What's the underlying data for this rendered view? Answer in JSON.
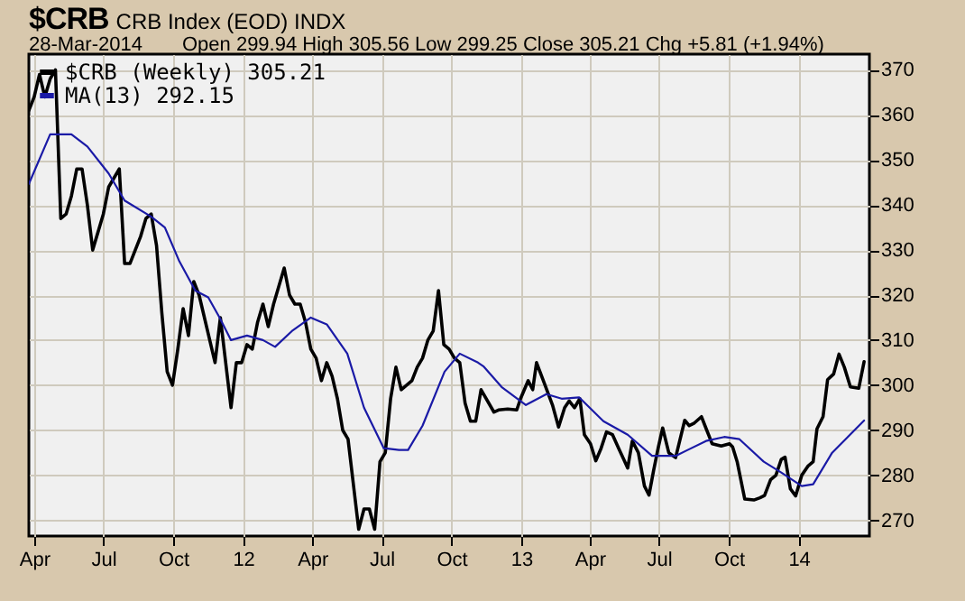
{
  "chart_data": {
    "type": "line",
    "title": "$CRB",
    "subtitle": "CRB Index (EOD)  INDX",
    "annotations": [
      "28-Mar-2014",
      "Open 299.94  High 305.56  Low 299.25  Close 305.21  Chg +5.81 (+1.94%)"
    ],
    "xlim": [
      "2011-03-25",
      "2014-04-04"
    ],
    "xticks": [
      {
        "value": "2011-04-01",
        "label": "Apr"
      },
      {
        "value": "2011-07-01",
        "label": "Jul"
      },
      {
        "value": "2011-10-01",
        "label": "Oct"
      },
      {
        "value": "2012-01-01",
        "label": "12"
      },
      {
        "value": "2012-04-01",
        "label": "Apr"
      },
      {
        "value": "2012-07-01",
        "label": "Jul"
      },
      {
        "value": "2012-10-01",
        "label": "Oct"
      },
      {
        "value": "2013-01-01",
        "label": "13"
      },
      {
        "value": "2013-04-01",
        "label": "Apr"
      },
      {
        "value": "2013-07-01",
        "label": "Jul"
      },
      {
        "value": "2013-10-01",
        "label": "Oct"
      },
      {
        "value": "2014-01-01",
        "label": "14"
      }
    ],
    "ylim": [
      266.5,
      373.5
    ],
    "yticks": [
      270,
      280,
      290,
      300,
      310,
      320,
      330,
      340,
      350,
      360,
      370
    ],
    "grid": true,
    "legend": "top left",
    "series": [
      {
        "name": "$CRB (Weekly) 305.21",
        "color": "#000000",
        "x": [
          "2011-03-25",
          "2011-04-01",
          "2011-04-08",
          "2011-04-15",
          "2011-04-22",
          "2011-04-29",
          "2011-05-06",
          "2011-05-13",
          "2011-05-20",
          "2011-05-27",
          "2011-06-03",
          "2011-06-10",
          "2011-06-17",
          "2011-06-24",
          "2011-07-01",
          "2011-07-08",
          "2011-07-15",
          "2011-07-22",
          "2011-07-29",
          "2011-08-05",
          "2011-08-12",
          "2011-08-19",
          "2011-08-26",
          "2011-09-02",
          "2011-09-09",
          "2011-09-16",
          "2011-09-23",
          "2011-09-30",
          "2011-10-07",
          "2011-10-14",
          "2011-10-21",
          "2011-10-28",
          "2011-11-04",
          "2011-11-25",
          "2011-12-02",
          "2011-12-16",
          "2011-12-23",
          "2011-12-30",
          "2012-01-06",
          "2012-01-13",
          "2012-01-20",
          "2012-01-27",
          "2012-02-03",
          "2012-02-10",
          "2012-02-17",
          "2012-02-24",
          "2012-03-02",
          "2012-03-09",
          "2012-03-16",
          "2012-03-23",
          "2012-03-30",
          "2012-04-06",
          "2012-04-13",
          "2012-04-20",
          "2012-04-27",
          "2012-05-04",
          "2012-05-11",
          "2012-05-18",
          "2012-05-25",
          "2012-06-01",
          "2012-06-08",
          "2012-06-15",
          "2012-06-22",
          "2012-06-29",
          "2012-07-06",
          "2012-07-13",
          "2012-07-20",
          "2012-07-27",
          "2012-08-03",
          "2012-08-10",
          "2012-08-17",
          "2012-08-24",
          "2012-08-31",
          "2012-09-07",
          "2012-09-14",
          "2012-09-21",
          "2012-09-28",
          "2012-10-05",
          "2012-10-12",
          "2012-10-19",
          "2012-10-26",
          "2012-11-02",
          "2012-11-09",
          "2012-11-26",
          "2012-12-02",
          "2012-12-14",
          "2012-12-26",
          "2012-12-31",
          "2013-01-10",
          "2013-01-16",
          "2013-01-21",
          "2013-01-30",
          "2013-02-11",
          "2013-02-19",
          "2013-02-27",
          "2013-03-05",
          "2013-03-12",
          "2013-03-19",
          "2013-03-25",
          "2013-04-02",
          "2013-04-09",
          "2013-04-16",
          "2013-04-23",
          "2013-05-01",
          "2013-05-09",
          "2013-05-21",
          "2013-05-27",
          "2013-06-04",
          "2013-06-12",
          "2013-06-18",
          "2013-06-24",
          "2013-06-30",
          "2013-07-06",
          "2013-07-14",
          "2013-07-23",
          "2013-08-04",
          "2013-08-10",
          "2013-08-16",
          "2013-08-26",
          "2013-09-02",
          "2013-09-09",
          "2013-09-21",
          "2013-10-02",
          "2013-10-06",
          "2013-10-12",
          "2013-10-22",
          "2013-11-03",
          "2013-11-11",
          "2013-11-17",
          "2013-11-25",
          "2013-12-02",
          "2013-12-09",
          "2013-12-14",
          "2013-12-21",
          "2013-12-28",
          "2014-01-05",
          "2014-01-13",
          "2014-01-20",
          "2014-01-25",
          "2014-02-02",
          "2014-02-08",
          "2014-02-16",
          "2014-02-23",
          "2014-03-02",
          "2014-03-10",
          "2014-03-21",
          "2014-03-28"
        ],
        "values": [
          361,
          364,
          369,
          364,
          368,
          370,
          337,
          338,
          342,
          348,
          348,
          340,
          330,
          334,
          338,
          344,
          346,
          348,
          327,
          327,
          330,
          333,
          337,
          338,
          331,
          316,
          303,
          300,
          308,
          317,
          311,
          323,
          320,
          305,
          315,
          295,
          305,
          305,
          309,
          308,
          314,
          318,
          313,
          318,
          322,
          326,
          320,
          318,
          318,
          314,
          308,
          306,
          301,
          305,
          302,
          297,
          290,
          288,
          278,
          268,
          272.5,
          272.5,
          268,
          283,
          285,
          297,
          304,
          299,
          300,
          301,
          304,
          306,
          310,
          312,
          321,
          309,
          308,
          306,
          305,
          296,
          292,
          292,
          299,
          294,
          294.5,
          294.7,
          294.5,
          297,
          301,
          299,
          305,
          301,
          295.6,
          290.7,
          295,
          296.5,
          295,
          297,
          289,
          287,
          283.2,
          286,
          289.6,
          289,
          286,
          281.6,
          287.6,
          285,
          277.6,
          275.6,
          281,
          286,
          290.5,
          285,
          283.9,
          292.2,
          291,
          291.5,
          293,
          290,
          287,
          286.5,
          287,
          286.3,
          283,
          274.7,
          274.5,
          275,
          275.5,
          279,
          280,
          283.5,
          284,
          277,
          275.4,
          280,
          282,
          283,
          290.3,
          293,
          301.2,
          302.5,
          306.9,
          304,
          299.6,
          299.3,
          305.21
        ]
      },
      {
        "name": "MA(13) 292.15",
        "color": "#1a1aa6",
        "x": [
          "2011-03-25",
          "2011-04-22",
          "2011-05-20",
          "2011-06-10",
          "2011-07-08",
          "2011-07-29",
          "2011-09-02",
          "2011-09-20",
          "2011-10-09",
          "2011-10-30",
          "2011-11-16",
          "2011-12-01",
          "2011-12-16",
          "2012-01-06",
          "2012-01-27",
          "2012-02-12",
          "2012-03-05",
          "2012-03-30",
          "2012-04-20",
          "2012-05-17",
          "2012-06-08",
          "2012-07-04",
          "2012-07-24",
          "2012-08-05",
          "2012-08-24",
          "2012-09-22",
          "2012-10-12",
          "2012-11-05",
          "2012-11-12",
          "2012-12-06",
          "2013-01-07",
          "2013-02-03",
          "2013-02-23",
          "2013-03-18",
          "2013-04-19",
          "2013-05-21",
          "2013-06-22",
          "2013-07-23",
          "2013-09-01",
          "2013-09-25",
          "2013-10-15",
          "2013-11-16",
          "2013-12-09",
          "2014-01-05",
          "2014-01-20",
          "2014-02-14",
          "2014-03-28"
        ],
        "values": [
          344.7,
          355.7,
          355.7,
          353,
          347,
          341,
          337.4,
          335,
          327.5,
          321,
          319.5,
          315,
          310,
          311,
          310,
          308.5,
          312,
          315,
          313.5,
          307,
          295,
          286,
          285.6,
          285.6,
          291,
          303,
          307,
          305,
          304.2,
          299.6,
          295.6,
          298,
          297,
          297.3,
          292,
          289,
          284.3,
          284.3,
          287.6,
          288.5,
          288,
          283,
          280.6,
          277.6,
          278,
          285,
          292.15
        ]
      }
    ]
  }
}
